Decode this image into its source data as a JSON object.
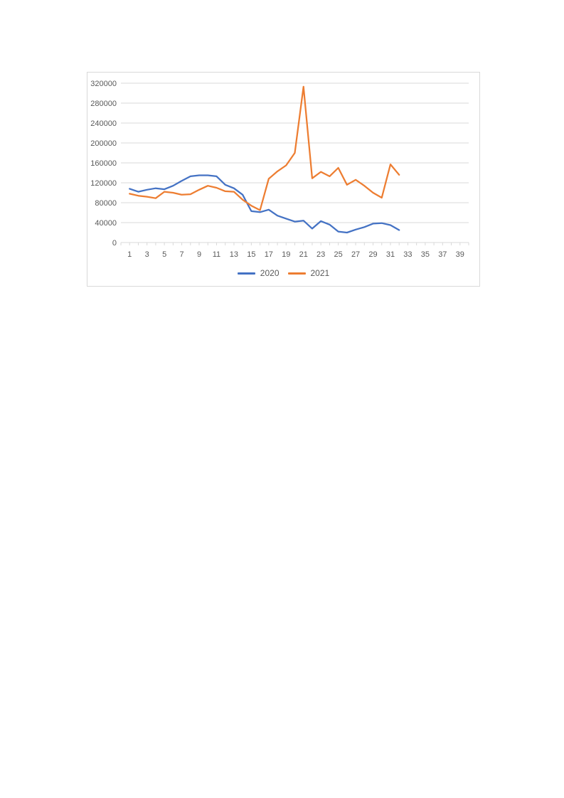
{
  "colors": {
    "series_2020": "#4472C4",
    "series_2021": "#ED7D31",
    "gridline": "#D9D9D9",
    "axis_line": "#D9D9D9",
    "tick_label": "#595959",
    "chart_border": "#D9D9D9",
    "background": "#FFFFFF"
  },
  "axis": {
    "y_tick_labels": [
      "0",
      "40000",
      "80000",
      "120000",
      "160000",
      "200000",
      "240000",
      "280000",
      "320000"
    ],
    "x_tick_labels": [
      "1",
      "3",
      "5",
      "7",
      "9",
      "11",
      "13",
      "15",
      "17",
      "19",
      "21",
      "23",
      "25",
      "27",
      "29",
      "31",
      "33",
      "35",
      "37",
      "39"
    ]
  },
  "legend": {
    "items": [
      {
        "label": "2020",
        "color": "#4472C4"
      },
      {
        "label": "2021",
        "color": "#ED7D31"
      }
    ]
  },
  "chart_data": {
    "type": "line",
    "title": "",
    "xlabel": "",
    "ylabel": "",
    "x": [
      1,
      2,
      3,
      4,
      5,
      6,
      7,
      8,
      9,
      10,
      11,
      12,
      13,
      14,
      15,
      16,
      17,
      18,
      19,
      20,
      21,
      22,
      23,
      24,
      25,
      26,
      27,
      28,
      29,
      30,
      31,
      32
    ],
    "series": [
      {
        "name": "2020",
        "color": "#4472C4",
        "values": [
          108000,
          102000,
          106000,
          109000,
          107000,
          114000,
          124000,
          133000,
          135000,
          135000,
          133000,
          116000,
          109000,
          96000,
          63000,
          61000,
          66000,
          54000,
          48000,
          42000,
          44000,
          28000,
          43000,
          36000,
          22000,
          20000,
          26000,
          31000,
          38000,
          39000,
          35000,
          25000
        ]
      },
      {
        "name": "2021",
        "color": "#ED7D31",
        "values": [
          98000,
          94000,
          92000,
          89000,
          102000,
          100000,
          96000,
          97000,
          106000,
          114000,
          110000,
          103000,
          102000,
          86000,
          74000,
          65000,
          128000,
          143000,
          155000,
          180000,
          313000,
          129000,
          142000,
          133000,
          150000,
          116000,
          126000,
          114000,
          100000,
          90000,
          157000,
          136000
        ]
      }
    ],
    "ylim": [
      0,
      320000
    ],
    "ytick_step": 40000,
    "xlim": [
      0,
      40
    ],
    "xticks_labeled": [
      1,
      3,
      5,
      7,
      9,
      11,
      13,
      15,
      17,
      19,
      21,
      23,
      25,
      27,
      29,
      31,
      33,
      35,
      37,
      39
    ],
    "grid": "horizontal",
    "legend_position": "bottom-center"
  }
}
